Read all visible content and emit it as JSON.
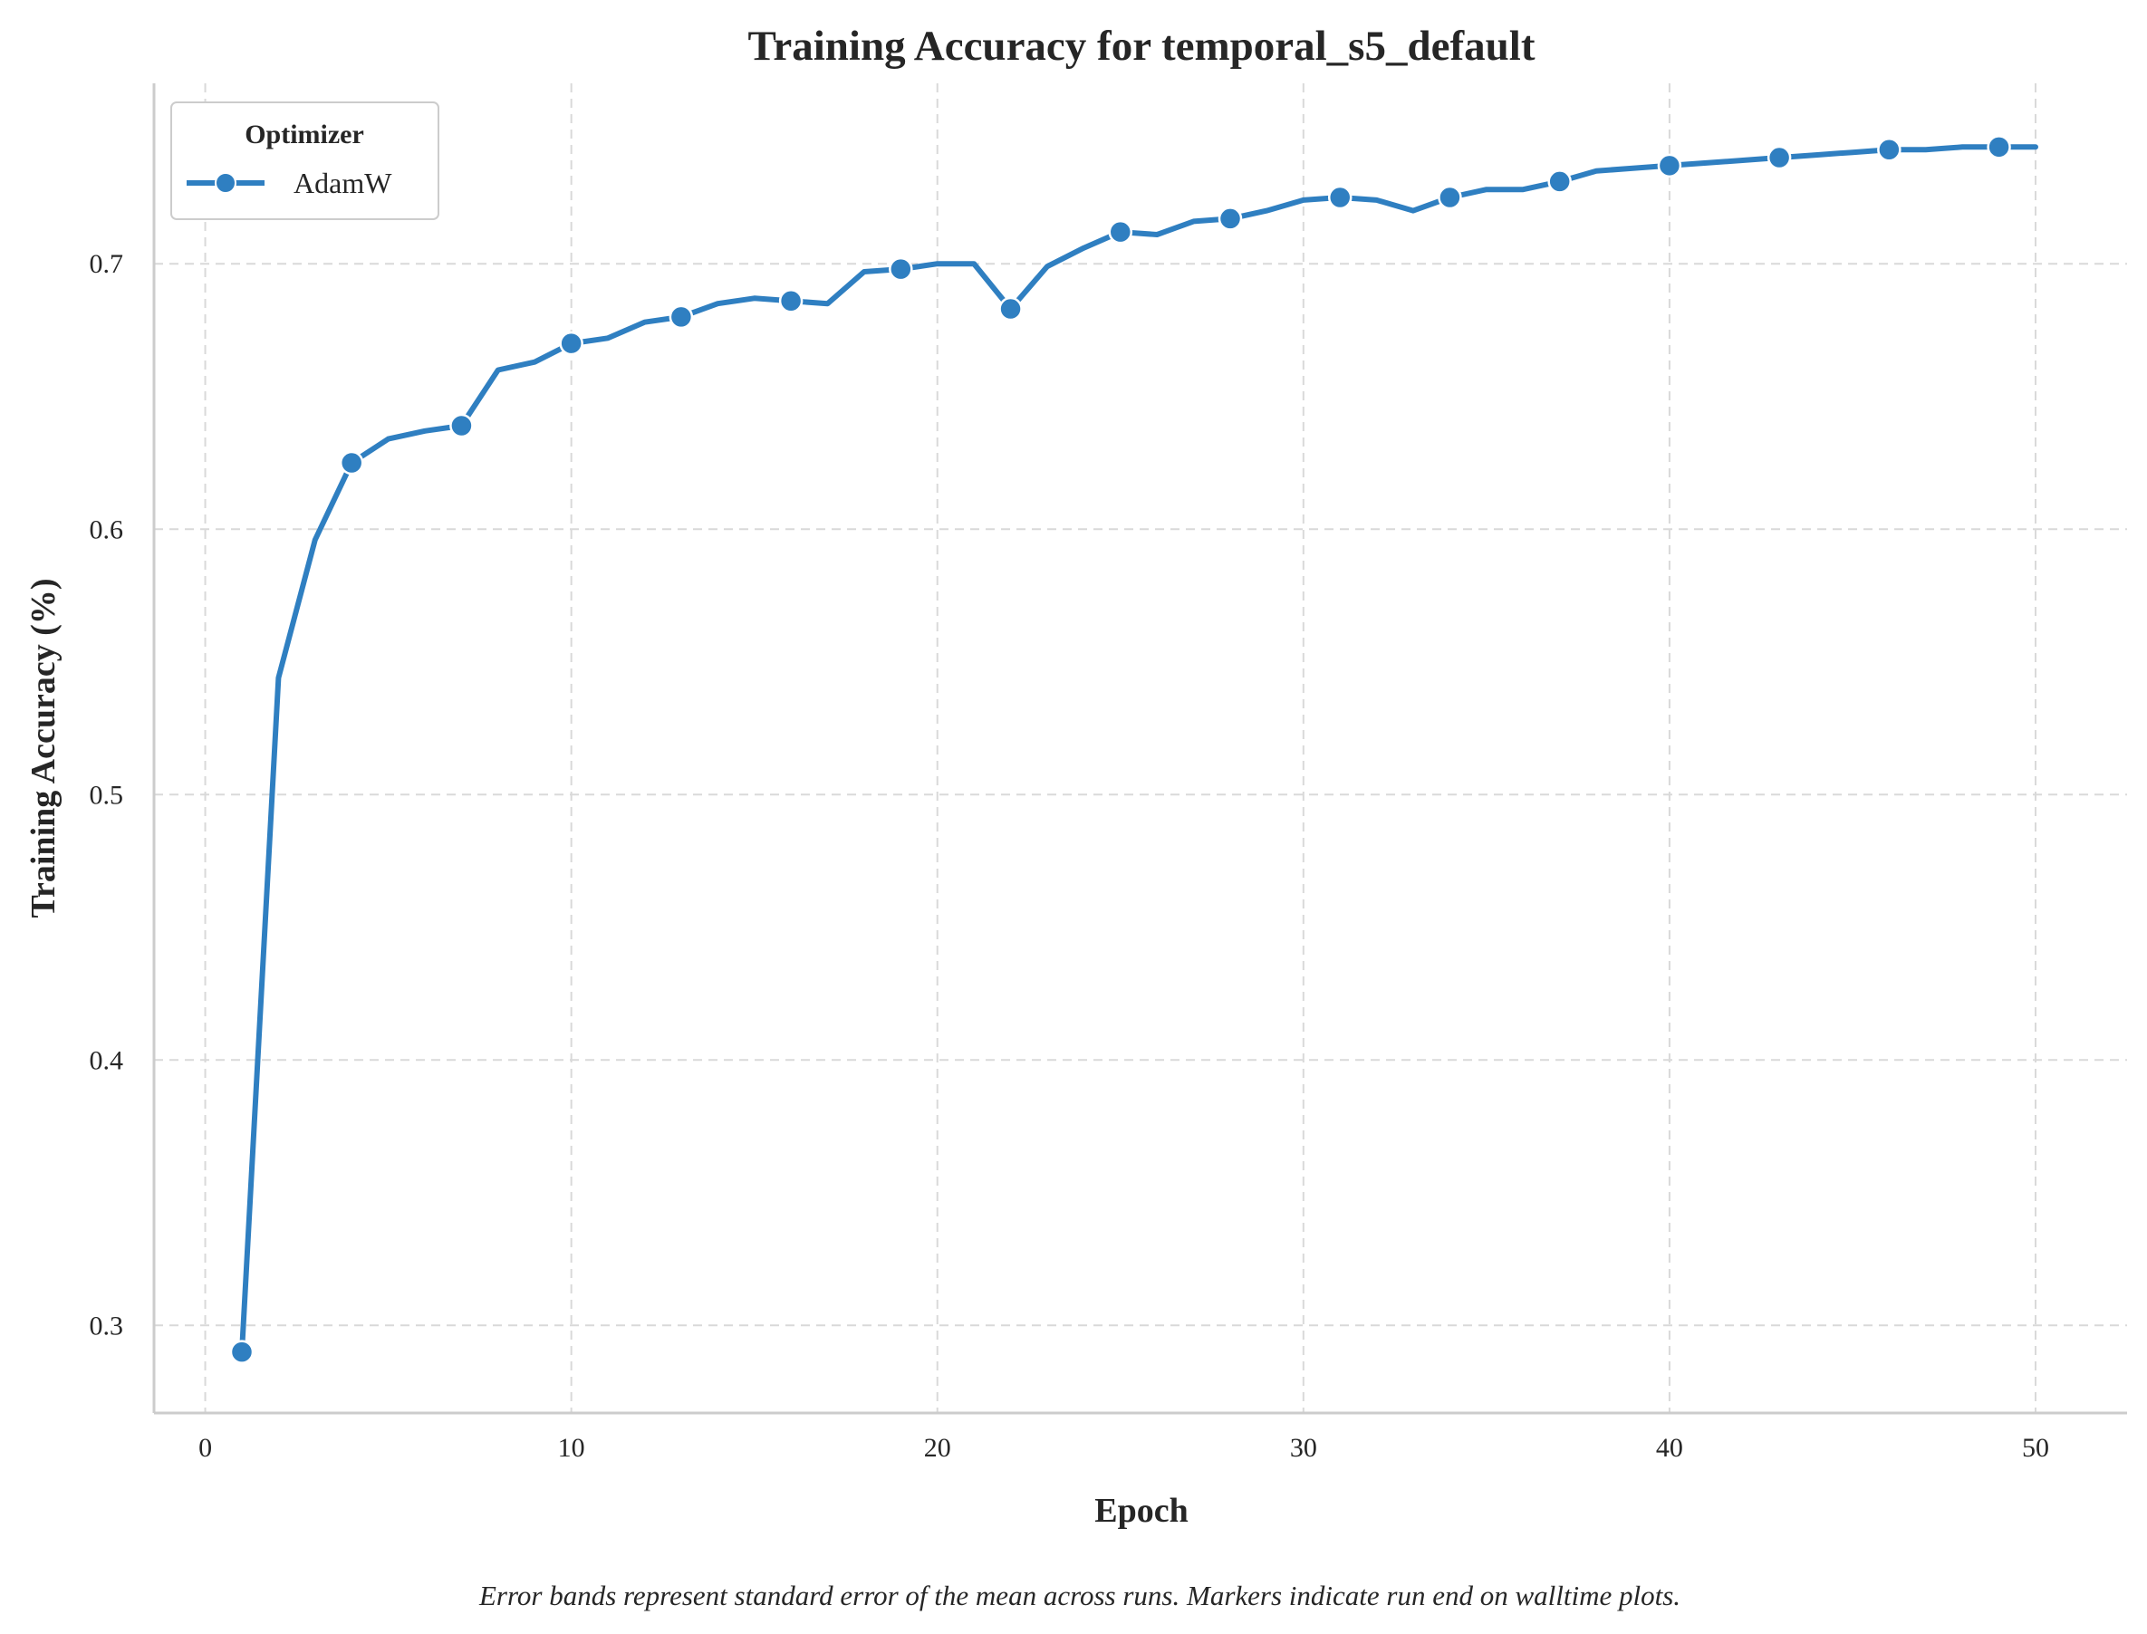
{
  "chart_data": {
    "type": "line",
    "title": "Training Accuracy for temporal_s5_default",
    "xlabel": "Epoch",
    "ylabel": "Training Accuracy (%)",
    "xlim": [
      -1.4,
      52.5
    ],
    "ylim": [
      0.267,
      0.768
    ],
    "xticks": [
      0,
      10,
      20,
      30,
      40,
      50
    ],
    "yticks": [
      0.3,
      0.4,
      0.5,
      0.6,
      0.7
    ],
    "xtick_labels": [
      "0",
      "10",
      "20",
      "30",
      "40",
      "50"
    ],
    "ytick_labels": [
      "0.3",
      "0.4",
      "0.5",
      "0.6",
      "0.7"
    ],
    "grid": true,
    "legend": {
      "title": "Optimizer",
      "position": "top-left"
    },
    "caption": "Error bands represent standard error of the mean across runs. Markers indicate run end on walltime plots.",
    "series": [
      {
        "name": "AdamW",
        "color": "#2f7fc1",
        "marker_every": 3,
        "x": [
          1,
          2,
          3,
          4,
          5,
          6,
          7,
          8,
          9,
          10,
          11,
          12,
          13,
          14,
          15,
          16,
          17,
          18,
          19,
          20,
          21,
          22,
          23,
          24,
          25,
          26,
          27,
          28,
          29,
          30,
          31,
          32,
          33,
          34,
          35,
          36,
          37,
          38,
          39,
          40,
          41,
          42,
          43,
          44,
          45,
          46,
          47,
          48,
          49,
          50
        ],
        "values": [
          0.29,
          0.544,
          0.596,
          0.625,
          0.634,
          0.637,
          0.639,
          0.66,
          0.663,
          0.67,
          0.672,
          0.678,
          0.68,
          0.685,
          0.687,
          0.686,
          0.685,
          0.697,
          0.698,
          0.7,
          0.7,
          0.683,
          0.699,
          0.706,
          0.712,
          0.711,
          0.716,
          0.717,
          0.72,
          0.724,
          0.725,
          0.724,
          0.72,
          0.725,
          0.728,
          0.728,
          0.731,
          0.735,
          0.736,
          0.737,
          0.738,
          0.739,
          0.74,
          0.741,
          0.742,
          0.743,
          0.743,
          0.744,
          0.744,
          0.744
        ]
      }
    ]
  }
}
